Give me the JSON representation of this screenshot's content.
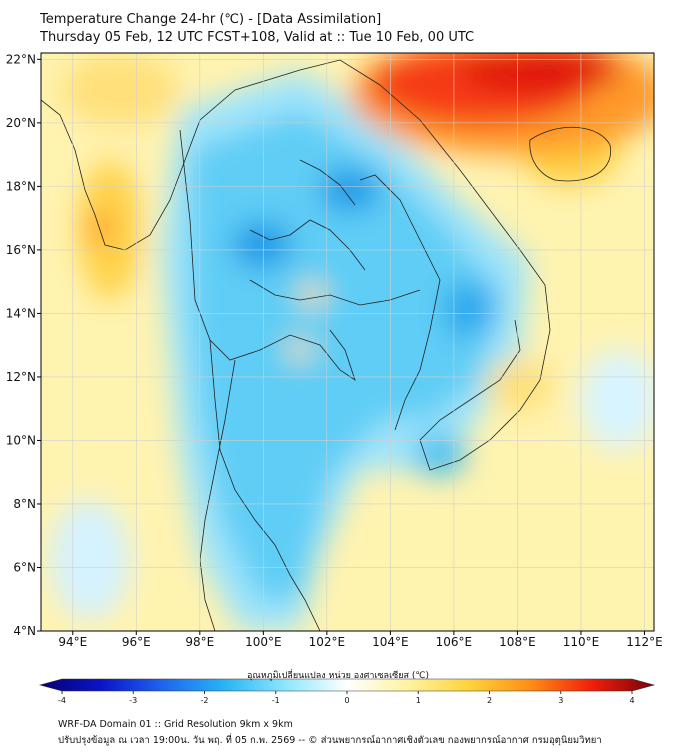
{
  "title_line1": "Temperature Change 24-hr (℃) - [Data Assimilation]",
  "title_line2": "Thursday 05 Feb, 12 UTC FCST+108, Valid at :: Tue 10 Feb, 00 UTC",
  "map": {
    "lon_range": [
      93,
      112.3
    ],
    "lat_range": [
      4,
      22.2
    ],
    "lon_ticks": [
      94,
      96,
      98,
      100,
      102,
      104,
      106,
      108,
      110,
      112
    ],
    "lat_ticks": [
      4,
      6,
      8,
      10,
      12,
      14,
      16,
      18,
      20,
      22
    ],
    "lon_tick_labels": [
      "94°E",
      "96°E",
      "98°E",
      "100°E",
      "102°E",
      "104°E",
      "106°E",
      "108°E",
      "110°E",
      "112°E"
    ],
    "lat_tick_labels": [
      "4°N",
      "6°N",
      "8°N",
      "10°N",
      "12°N",
      "14°N",
      "16°N",
      "18°N",
      "20°N",
      "22°N"
    ],
    "grid": true
  },
  "colorbar": {
    "label": "อุณหภูมิเปลี่ยนแปลง หน่วย องศาเซลเซียส (℃)",
    "min": -4,
    "max": 4,
    "ticks": [
      -4,
      -3,
      -2,
      -1,
      0,
      1,
      2,
      3,
      4
    ],
    "tick_labels": [
      "-4",
      "-3",
      "-2",
      "-1",
      "0",
      "1",
      "2",
      "3",
      "4"
    ],
    "colors": [
      "#080070",
      "#0a14c8",
      "#1e64f0",
      "#28b4f5",
      "#8ee6ff",
      "#ffffff",
      "#fff3a0",
      "#ffd23c",
      "#ff8c14",
      "#f01e0a",
      "#78000a"
    ]
  },
  "footer_line1": "WRF-DA Domain 01 :: Grid Resolution 9km x 9km",
  "footer_line2": "ปรับปรุงข้อมูล ณ เวลา 19:00น. วัน พฤ. ที่ 05 ก.พ. 2569 -- © ส่วนพยากรณ์อากาศเชิงตัวเลข กองพยากรณ์อากาศ กรมอุตุนิยมวิทยา"
}
